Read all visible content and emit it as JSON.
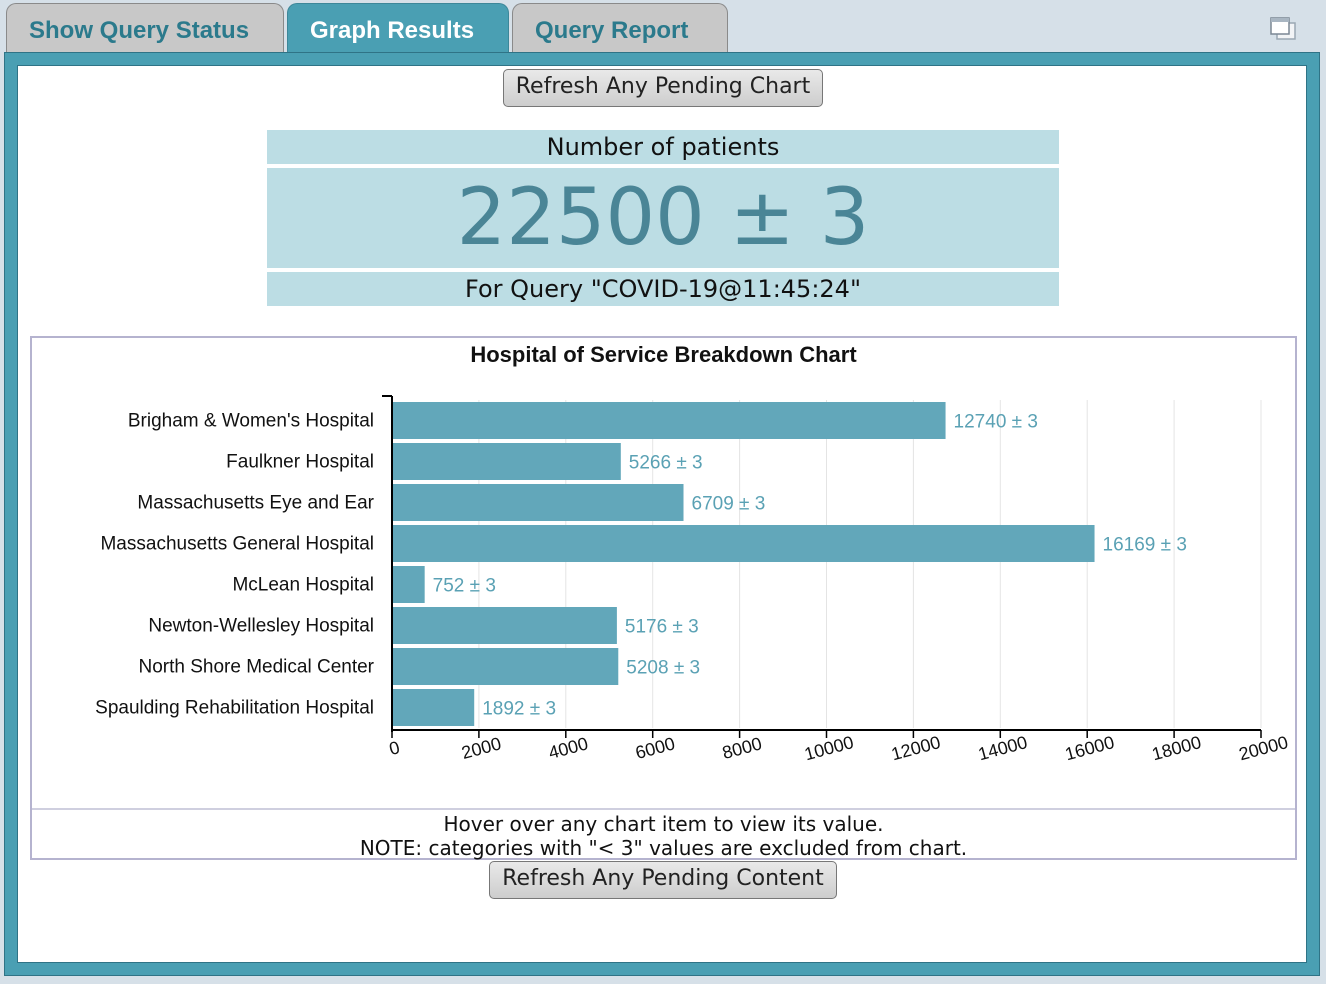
{
  "tabs": [
    {
      "label": "Show Query Status",
      "active": false
    },
    {
      "label": "Graph Results",
      "active": true
    },
    {
      "label": "Query Report",
      "active": false
    }
  ],
  "icons": {
    "restore": "window-restore-icon"
  },
  "buttons": {
    "refresh_chart": "Refresh Any Pending Chart",
    "refresh_content": "Refresh Any Pending Content"
  },
  "patients": {
    "label": "Number of patients",
    "value": "22500 ± 3",
    "query": "For Query \"COVID-19@11:45:24\""
  },
  "chart_title": "Hospital of Service Breakdown Chart",
  "notes": {
    "line1": "Hover over any chart item to view its value.",
    "line2": "NOTE: categories with \"< 3\" values are excluded from chart."
  },
  "colors": {
    "accent": "#4a9fb3",
    "bar": "#62a7ba",
    "label": "#5aa1b4"
  },
  "chart_data": {
    "type": "bar",
    "orientation": "horizontal",
    "title": "Hospital of Service Breakdown Chart",
    "categories": [
      "Brigham & Women's Hospital",
      "Faulkner Hospital",
      "Massachusetts Eye and Ear",
      "Massachusetts General Hospital",
      "McLean Hospital",
      "Newton-Wellesley Hospital",
      "North Shore Medical Center",
      "Spaulding Rehabilitation Hospital"
    ],
    "values": [
      12740,
      5266,
      6709,
      16169,
      752,
      5176,
      5208,
      1892
    ],
    "data_labels": [
      "12740 ± 3",
      "5266 ± 3",
      "6709 ± 3",
      "16169 ± 3",
      "752 ± 3",
      "5176 ± 3",
      "5208 ± 3",
      "1892 ± 3"
    ],
    "xlim": [
      0,
      20000
    ],
    "xticks": [
      0,
      2000,
      4000,
      6000,
      8000,
      10000,
      12000,
      14000,
      16000,
      18000,
      20000
    ],
    "grid": true
  }
}
